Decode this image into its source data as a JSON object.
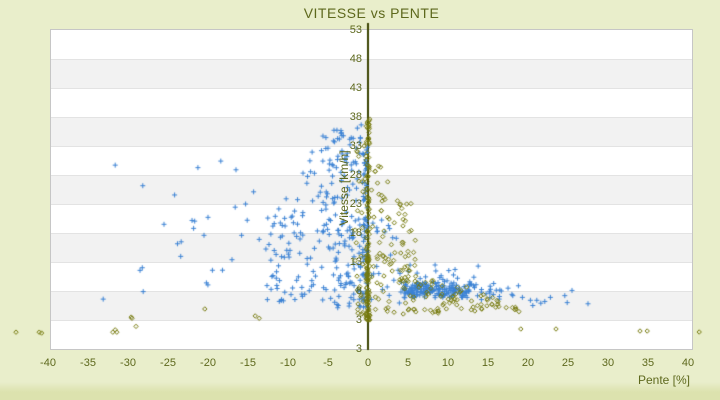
{
  "title": "VITESSE vs PENTE",
  "colors": {
    "page_background": "#e9eecb",
    "page_background_bottom": "#dce2ae",
    "text_olive": "#5d681c",
    "band_white": "#ffffff",
    "band_gray": "#f2f2f2",
    "plot_border": "#c6c6c6",
    "zero_axis_line": "#3a4200",
    "marker_blue": "#3b82d4",
    "marker_olive": "#75790c"
  },
  "chart_data": {
    "type": "scatter",
    "title": "VITESSE vs PENTE",
    "xlabel": "Pente [%]",
    "ylabel": "Vitesse [km/h]",
    "xlim": [
      -40,
      40
    ],
    "ylim": [
      3,
      53
    ],
    "x_ticks": [
      -40,
      -35,
      -30,
      -25,
      -20,
      -15,
      -10,
      -5,
      0,
      5,
      10,
      15,
      20,
      25,
      30,
      35,
      40
    ],
    "y_tick_labels": [
      "53",
      "48",
      "43",
      "38",
      "33",
      "28",
      "23",
      "18",
      "13",
      "8",
      "3",
      "3"
    ],
    "grid": "alternating horizontal bands every 5 units, vertical dark axis line at x=0",
    "legend": "none",
    "seed": 1337,
    "series": [
      {
        "name": "blue",
        "marker": "plus",
        "color": "#3b82d4",
        "clusters": [
          {
            "n": 14,
            "x": [
              -32,
              -13
            ],
            "ybase": [
              7,
              0
            ],
            "ytop": [
              31,
              0
            ]
          },
          {
            "n": 85,
            "x": [
              -13,
              -6
            ],
            "ybase": [
              6,
              0
            ],
            "ytop": [
              46.1,
              1.86
            ]
          },
          {
            "n": 190,
            "x": [
              -6,
              -0.3
            ],
            "xpow": 0.85,
            "ybase": [
              5,
              0
            ],
            "ytop": [
              37.2,
              0.35
            ]
          },
          {
            "n": 55,
            "x": [
              -0.6,
              -0.05
            ],
            "ybase": [
              4.5,
              0
            ],
            "ytop": [
              34,
              0
            ]
          },
          {
            "n": 125,
            "x": [
              4,
              13
            ],
            "ybase": [
              6.8,
              0
            ],
            "ytop": [
              9.6,
              0
            ]
          },
          {
            "n": 60,
            "x": [
              4.5,
              11.5
            ],
            "ybase": [
              7.4,
              0
            ],
            "ytop": [
              8.9,
              0
            ]
          },
          {
            "n": 18,
            "x": [
              3,
              14
            ],
            "ybase": [
              9.6,
              0
            ],
            "ytop": [
              12.5,
              0
            ]
          },
          {
            "n": 22,
            "x": [
              13,
              18.5
            ],
            "ybase": [
              6.2,
              0
            ],
            "ytop": [
              9.3,
              0
            ]
          },
          {
            "n": 22,
            "x": [
              0.3,
              4
            ],
            "ybase": [
              5,
              0
            ],
            "ytop": [
              28,
              -3
            ]
          }
        ],
        "points": [
          [
            -31.6,
            29.7
          ],
          [
            -18.4,
            30.4
          ],
          [
            -16.5,
            28.9
          ],
          [
            -14.3,
            25.1
          ],
          [
            -15.3,
            23.0
          ],
          [
            -20.0,
            20.7
          ],
          [
            -25.5,
            19.5
          ],
          [
            -21.8,
            18.8
          ],
          [
            -15.1,
            20.2
          ],
          [
            -20.5,
            17.6
          ],
          [
            -15.8,
            17.6
          ],
          [
            -13.6,
            16.9
          ],
          [
            -17.0,
            13.4
          ],
          [
            -20.2,
            9.4
          ],
          [
            -28.1,
            7.9
          ],
          [
            -33.1,
            6.6
          ],
          [
            18.8,
            8.9
          ],
          [
            18.1,
            7.2
          ],
          [
            19.3,
            6.9
          ],
          [
            20.3,
            6.4
          ],
          [
            20.6,
            5.5
          ],
          [
            21.1,
            6.4
          ],
          [
            21.6,
            5.9
          ],
          [
            22.1,
            6.2
          ],
          [
            22.8,
            6.9
          ],
          [
            24.6,
            7.2
          ],
          [
            25.5,
            8.1
          ],
          [
            24.9,
            6.0
          ],
          [
            27.5,
            5.8
          ]
        ]
      },
      {
        "name": "olive",
        "marker": "diamond",
        "color": "#75790c",
        "clusters": [
          {
            "n": 140,
            "x": [
              -0.22,
              0.22
            ],
            "ybase": [
              3,
              0
            ],
            "ytop": [
              38,
              0
            ],
            "ypow": 1.5
          },
          {
            "n": 30,
            "x": [
              -1.6,
              -0.1
            ],
            "ybase": [
              4,
              0
            ],
            "ytop": [
              34,
              0
            ]
          },
          {
            "n": 70,
            "x": [
              0.4,
              6
            ],
            "ybase": [
              15,
              -1.5
            ],
            "ytop": [
              32,
              -1.5
            ]
          },
          {
            "n": 85,
            "x": [
              3,
              19
            ],
            "ybase": [
              4,
              0
            ],
            "ytop": [
              15.5,
              -0.55
            ]
          },
          {
            "n": 15,
            "x": [
              0.3,
              3
            ],
            "ybase": [
              4,
              0
            ],
            "ytop": [
              14,
              0
            ]
          }
        ],
        "points": [
          [
            -44.0,
            0.9
          ],
          [
            -41.1,
            0.9
          ],
          [
            -40.8,
            0.75
          ],
          [
            -31.6,
            1.3
          ],
          [
            -31.9,
            0.9
          ],
          [
            -31.4,
            0.9
          ],
          [
            -29.5,
            3.3
          ],
          [
            -29.0,
            1.9
          ],
          [
            -29.6,
            3.5
          ],
          [
            -20.4,
            4.9
          ],
          [
            -14.1,
            3.7
          ],
          [
            -13.6,
            3.3
          ],
          [
            19.1,
            1.45
          ],
          [
            23.5,
            1.45
          ],
          [
            34.0,
            1.1
          ],
          [
            34.9,
            1.1
          ],
          [
            41.4,
            0.93
          ]
        ]
      }
    ]
  }
}
